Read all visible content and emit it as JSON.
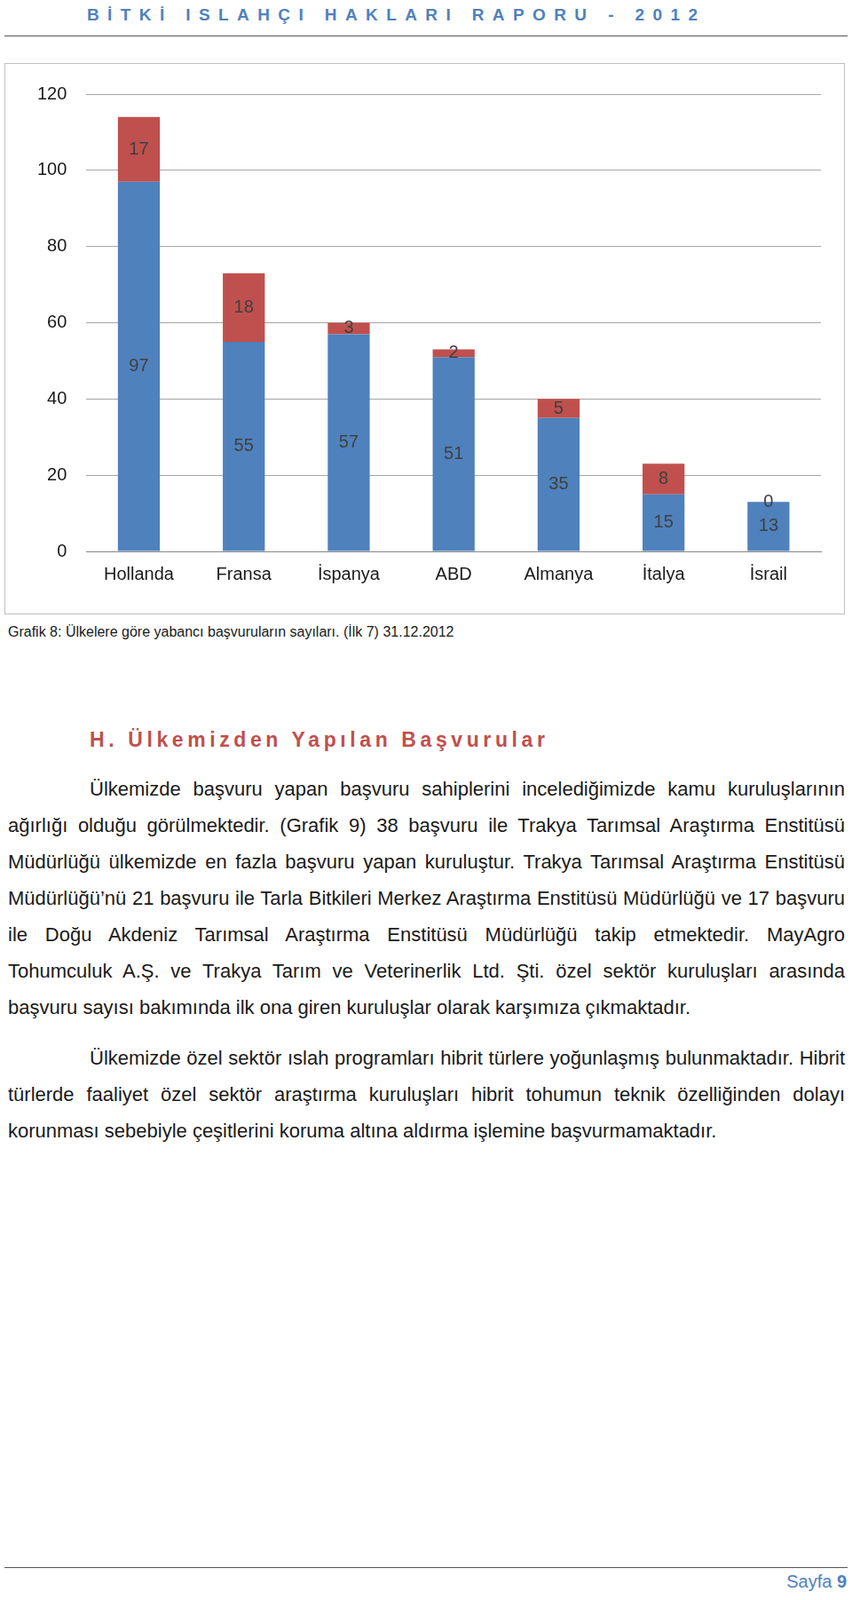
{
  "header": {
    "title": "BİTKİ ISLAHÇI HAKLARI RAPORU - 2012"
  },
  "chart_data": {
    "type": "bar",
    "stacked": true,
    "data_labels": true,
    "grid": true,
    "categories": [
      "Hollanda",
      "Fransa",
      "İspanya",
      "ABD",
      "Almanya",
      "İtalya",
      "İsrail"
    ],
    "series": [
      {
        "color": "#4f81bd",
        "values": [
          97,
          55,
          57,
          51,
          35,
          15,
          13
        ]
      },
      {
        "color": "#c0504d",
        "values": [
          17,
          18,
          3,
          2,
          5,
          8,
          0
        ]
      }
    ],
    "ylim": [
      0,
      120
    ],
    "yticks": [
      0,
      20,
      40,
      60,
      80,
      100,
      120
    ]
  },
  "caption": "Grafik 8: Ülkelere göre yabancı başvuruların sayıları. (İlk 7) 31.12.2012",
  "section": {
    "heading": "H. Ülkemizden Yapılan Başvurular",
    "paragraphs": [
      "Ülkemizde başvuru yapan başvuru sahiplerini incelediğimizde kamu kuruluşlarının ağırlığı olduğu görülmektedir. (Grafik 9) 38 başvuru ile Trakya Tarımsal Araştırma Enstitüsü Müdürlüğü ülkemizde en fazla başvuru yapan kuruluştur. Trakya Tarımsal Araştırma Enstitüsü Müdürlüğü’nü 21 başvuru ile Tarla Bitkileri Merkez Araştırma Enstitüsü Müdürlüğü ve 17 başvuru ile Doğu Akdeniz Tarımsal Araştırma Enstitüsü Müdürlüğü takip etmektedir. MayAgro Tohumculuk A.Ş. ve Trakya Tarım ve Veterinerlik Ltd. Şti. özel sektör kuruluşları arasında başvuru sayısı bakımında ilk ona giren kuruluşlar olarak karşımıza çıkmaktadır.",
      "Ülkemizde özel sektör ıslah programları hibrit türlere yoğunlaşmış bulunmaktadır. Hibrit türlerde faaliyet özel sektör araştırma kuruluşları hibrit tohumun teknik özelliğinden dolayı korunması sebebiyle çeşitlerini koruma altına aldırma işlemine başvurmamaktadır."
    ]
  },
  "footer": {
    "label": "Sayfa",
    "page": "9"
  }
}
